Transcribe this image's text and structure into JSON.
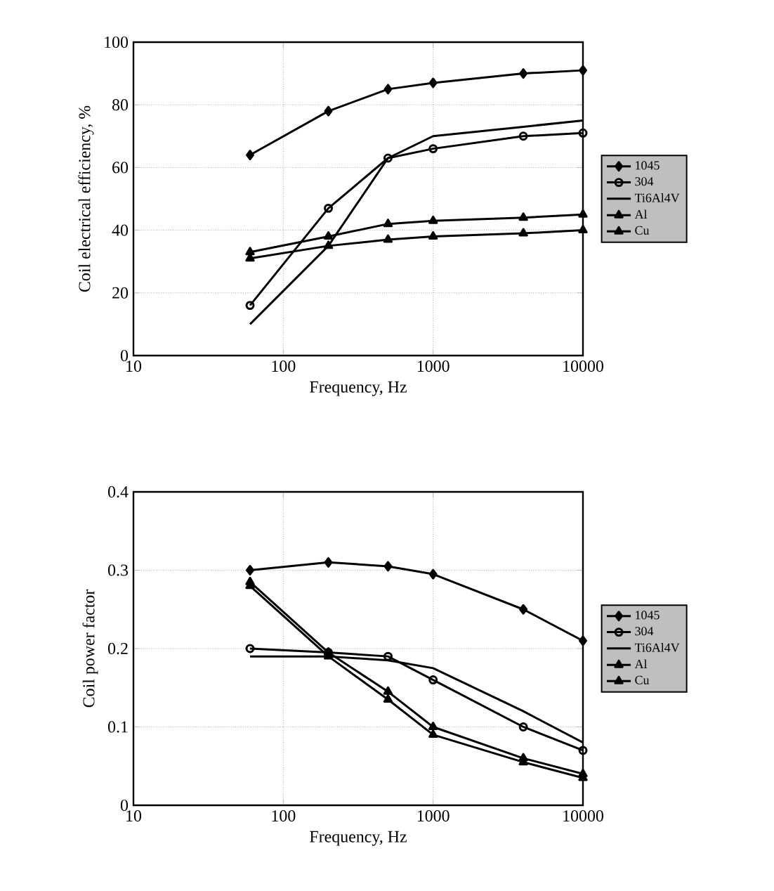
{
  "chart_data": [
    {
      "type": "line",
      "xlabel": "Frequency,  Hz",
      "ylabel": "Coil electrical efficiency,  %",
      "x": [
        60,
        200,
        500,
        1000,
        4000,
        10000
      ],
      "log": "x",
      "xlim": [
        10,
        10000
      ],
      "xticks": [
        10,
        100,
        1000,
        10000
      ],
      "ylim": [
        0,
        100
      ],
      "yticks": [
        0,
        20,
        40,
        60,
        80,
        100
      ],
      "grid": true,
      "legend": "right",
      "line_style": "solid",
      "series": [
        {
          "name": "1045",
          "color": "#000000",
          "marker": "diamond",
          "values": [
            64,
            78,
            85,
            87,
            90,
            91
          ]
        },
        {
          "name": "304",
          "color": "#000000",
          "marker": "circle",
          "values": [
            16,
            47,
            63,
            66,
            70,
            71
          ]
        },
        {
          "name": "Ti6Al4V",
          "color": "#000000",
          "marker": "none",
          "values": [
            10,
            35,
            63,
            70,
            73,
            75
          ]
        },
        {
          "name": "Al",
          "color": "#000000",
          "marker": "triangle",
          "values": [
            33,
            38,
            42,
            43,
            44,
            45
          ]
        },
        {
          "name": "Cu",
          "color": "#000000",
          "marker": "triangle",
          "values": [
            31,
            35,
            37,
            38,
            39,
            40
          ]
        }
      ]
    },
    {
      "type": "line",
      "xlabel": "Frequency,  Hz",
      "ylabel": "Coil power factor",
      "x": [
        60,
        200,
        500,
        1000,
        4000,
        10000
      ],
      "log": "x",
      "xlim": [
        10,
        10000
      ],
      "xticks": [
        10,
        100,
        1000,
        10000
      ],
      "ylim": [
        0,
        0.4
      ],
      "yticks": [
        0,
        0.1,
        0.2,
        0.3,
        0.4
      ],
      "grid": true,
      "legend": "right",
      "line_style": "solid",
      "series": [
        {
          "name": "1045",
          "color": "#000000",
          "marker": "diamond",
          "values": [
            0.3,
            0.31,
            0.305,
            0.295,
            0.25,
            0.21
          ]
        },
        {
          "name": "304",
          "color": "#000000",
          "marker": "circle",
          "values": [
            0.2,
            0.195,
            0.19,
            0.16,
            0.1,
            0.07
          ]
        },
        {
          "name": "Ti6Al4V",
          "color": "#000000",
          "marker": "none",
          "values": [
            0.19,
            0.19,
            0.185,
            0.175,
            0.12,
            0.08
          ]
        },
        {
          "name": "Al",
          "color": "#000000",
          "marker": "triangle",
          "values": [
            0.285,
            0.195,
            0.145,
            0.1,
            0.06,
            0.04
          ]
        },
        {
          "name": "Cu",
          "color": "#000000",
          "marker": "triangle",
          "values": [
            0.28,
            0.19,
            0.135,
            0.09,
            0.055,
            0.035
          ]
        }
      ]
    }
  ]
}
